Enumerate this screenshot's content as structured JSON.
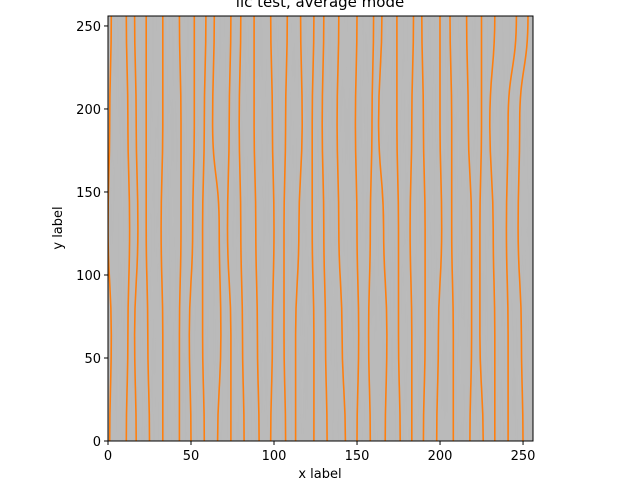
{
  "chart_data": {
    "type": "heatmap",
    "title": "lic test, average mode",
    "xlabel": "x label",
    "ylabel": "y label",
    "xlim": [
      0,
      256
    ],
    "ylim": [
      0,
      256
    ],
    "xticks": [
      0,
      50,
      100,
      150,
      200,
      250
    ],
    "yticks": [
      0,
      50,
      100,
      150,
      200,
      250
    ],
    "colormap": "gray",
    "grid": false,
    "background_texture": "line integral convolution of a near-vertical flow field, light gray streaks",
    "streamline_color": "#ff7f0e",
    "streamlines": [
      {
        "x": [
          1,
          2,
          0,
          1,
          2
        ]
      },
      {
        "x": [
          11,
          12,
          13,
          12,
          11
        ]
      },
      {
        "x": [
          17,
          16,
          18,
          17,
          16
        ]
      },
      {
        "x": [
          25,
          24,
          23,
          23,
          23
        ]
      },
      {
        "x": [
          33,
          33,
          32,
          33,
          33
        ]
      },
      {
        "x": [
          43,
          43,
          44,
          44,
          43
        ]
      },
      {
        "x": [
          50,
          49,
          51,
          52,
          52
        ]
      },
      {
        "x": [
          58,
          57,
          57,
          58,
          59
        ]
      },
      {
        "x": [
          66,
          68,
          67,
          63,
          64
        ]
      },
      {
        "x": [
          74,
          74,
          72,
          73,
          74
        ]
      },
      {
        "x": [
          82,
          81,
          80,
          79,
          80
        ]
      },
      {
        "x": [
          91,
          90,
          89,
          88,
          88
        ]
      },
      {
        "x": [
          98,
          99,
          100,
          99,
          98
        ]
      },
      {
        "x": [
          107,
          106,
          106,
          107,
          108
        ]
      },
      {
        "x": [
          113,
          113,
          115,
          117,
          116
        ]
      },
      {
        "x": [
          124,
          124,
          123,
          123,
          124
        ]
      },
      {
        "x": [
          132,
          131,
          130,
          129,
          130
        ]
      },
      {
        "x": [
          143,
          141,
          139,
          138,
          139
        ]
      },
      {
        "x": [
          150,
          151,
          150,
          149,
          150
        ]
      },
      {
        "x": [
          158,
          157,
          158,
          159,
          160
        ]
      },
      {
        "x": [
          167,
          168,
          166,
          163,
          165
        ]
      },
      {
        "x": [
          176,
          175,
          175,
          174,
          174
        ]
      },
      {
        "x": [
          183,
          183,
          182,
          183,
          184
        ]
      },
      {
        "x": [
          190,
          191,
          191,
          190,
          189
        ]
      },
      {
        "x": [
          198,
          199,
          201,
          200,
          200
        ]
      },
      {
        "x": [
          208,
          208,
          207,
          207,
          206
        ]
      },
      {
        "x": [
          218,
          219,
          219,
          217,
          216
        ]
      },
      {
        "x": [
          226,
          224,
          224,
          225,
          225
        ]
      },
      {
        "x": [
          233,
          233,
          232,
          230,
          233
        ]
      },
      {
        "x": [
          241,
          241,
          240,
          241,
          246
        ]
      },
      {
        "x": [
          250,
          249,
          247,
          248,
          253
        ]
      }
    ],
    "streamline_y": [
      0,
      64,
      128,
      192,
      256
    ]
  }
}
